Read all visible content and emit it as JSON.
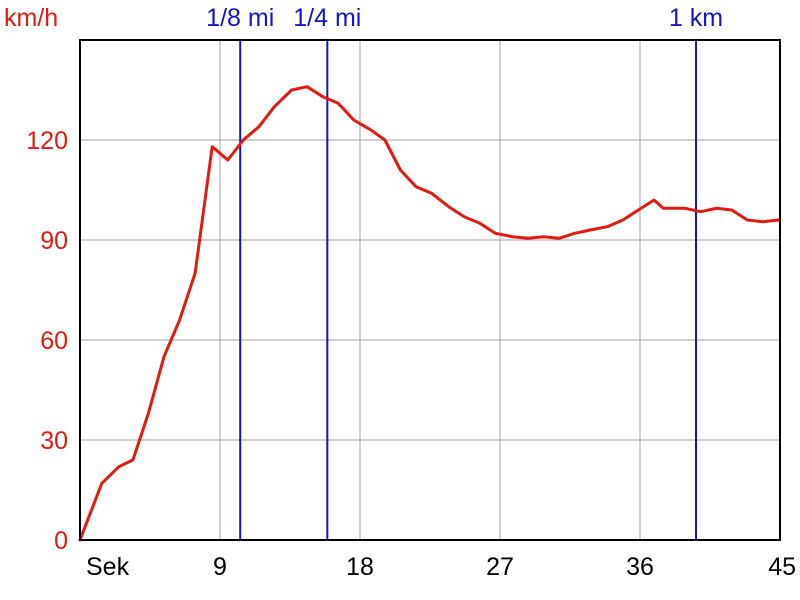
{
  "chart_data": {
    "type": "line",
    "ylabel": "km/h",
    "xlabel": "Sek",
    "title": "",
    "xlim": [
      0,
      45
    ],
    "ylim": [
      0,
      150
    ],
    "x_ticks": [
      9,
      18,
      27,
      36,
      45
    ],
    "y_ticks": [
      0,
      30,
      60,
      90,
      120
    ],
    "grid": true,
    "series": [
      {
        "color": "#e11a12",
        "x": [
          0,
          1.4,
          2.5,
          3.4,
          4.4,
          5.4,
          6.4,
          7.4,
          8.5,
          9.5,
          10.5,
          11.5,
          12.5,
          13.6,
          14.6,
          15.6,
          16.6,
          17.6,
          18.7,
          19.6,
          20.6,
          21.6,
          22.6,
          23.7,
          24.7,
          25.7,
          26.7,
          27.8,
          28.8,
          29.8,
          30.8,
          31.8,
          32.8,
          33.9,
          34.9,
          35.9,
          36.9,
          37.5,
          38.9,
          39.9,
          40.9,
          41.9,
          42.9,
          43.9,
          44.9
        ],
        "y": [
          0,
          17,
          22,
          24,
          38,
          55,
          66,
          80,
          118,
          114,
          120,
          124,
          130,
          135,
          136,
          133,
          131,
          126,
          123,
          120,
          111,
          106,
          104,
          100,
          97,
          95,
          92,
          91,
          90.5,
          91,
          90.5,
          92,
          93,
          94,
          96,
          99,
          102,
          99.5,
          99.5,
          98.5,
          99.5,
          99,
          96,
          95.5,
          96
        ]
      }
    ],
    "markers": [
      {
        "label": "1/8 mi",
        "x": 10.3,
        "color": "#1414c8"
      },
      {
        "label": "1/4 mi",
        "x": 15.9,
        "color": "#1414c8"
      },
      {
        "label": "1 km",
        "x": 39.6,
        "color": "#1414c8"
      }
    ],
    "colors": {
      "axis": "#000000",
      "grid": "#a0a0a0",
      "ylabel": "#e11a12",
      "xlabel": "#000000",
      "marker": "#1414c8"
    }
  }
}
